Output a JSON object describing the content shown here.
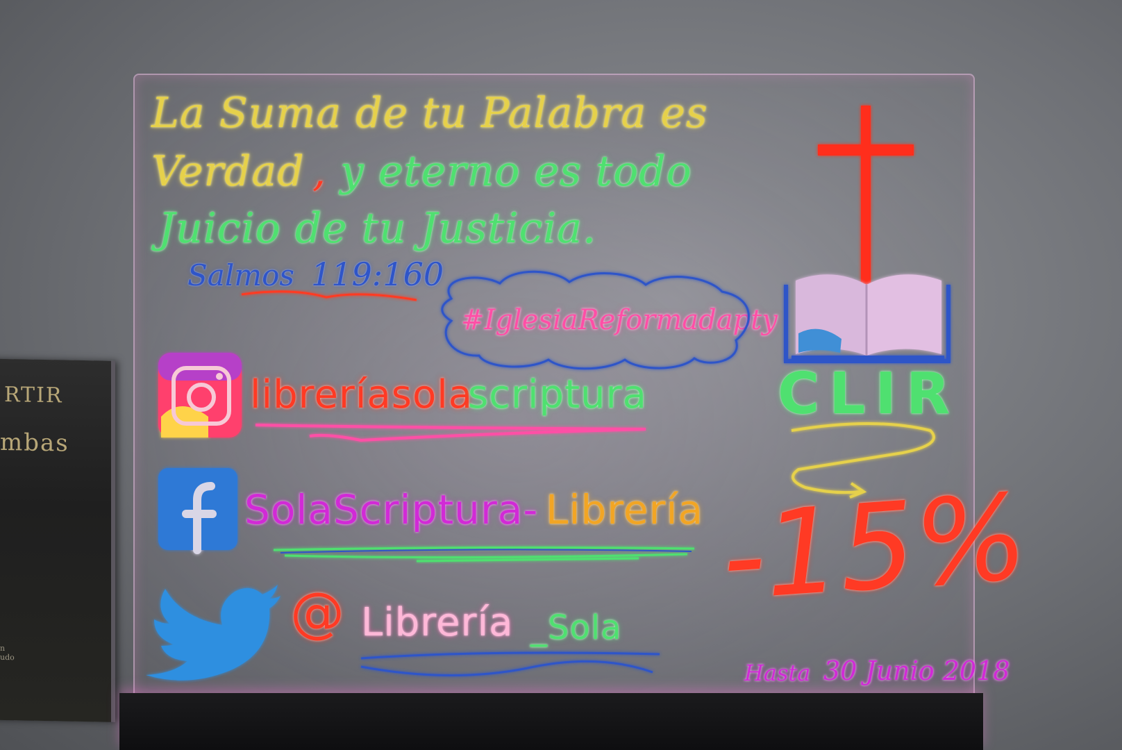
{
  "book": {
    "title_line1": "RTIR",
    "title_line2": "mbas",
    "small_text": "n\nudo"
  },
  "verse": {
    "line1": "La Suma de tu Palabra es",
    "line2_part1": "Verdad",
    "line2_comma": ",",
    "line2_part2": "y eterno es todo",
    "line3": "Juicio de tu Justicia.",
    "ref_book": "Salmos",
    "ref_chapter": "119:160"
  },
  "hashtag": "#IglesiaReformadapty",
  "instagram": {
    "handle_part1": "libreríasola",
    "handle_part2": "scriptura"
  },
  "facebook": {
    "name_part1": "SolaScriptura-",
    "name_part2": "Librería"
  },
  "twitter": {
    "at": "@",
    "handle_part1": "Librería",
    "handle_part2": "_Sola"
  },
  "brand": {
    "name": "CLIR"
  },
  "promo": {
    "discount": "-15%",
    "until_label": "Hasta",
    "until_date": "30 Junio 2018"
  },
  "colors": {
    "yellow": "#e6d14b",
    "green": "#4fe070",
    "red": "#ff3a24",
    "pink": "#ff4fa6",
    "blue": "#2f55c8",
    "magenta": "#d12ad6",
    "orange": "#f2a524"
  },
  "icons": [
    "instagram-icon",
    "facebook-icon",
    "twitter-bird-icon",
    "cross-icon",
    "open-bible-icon"
  ]
}
